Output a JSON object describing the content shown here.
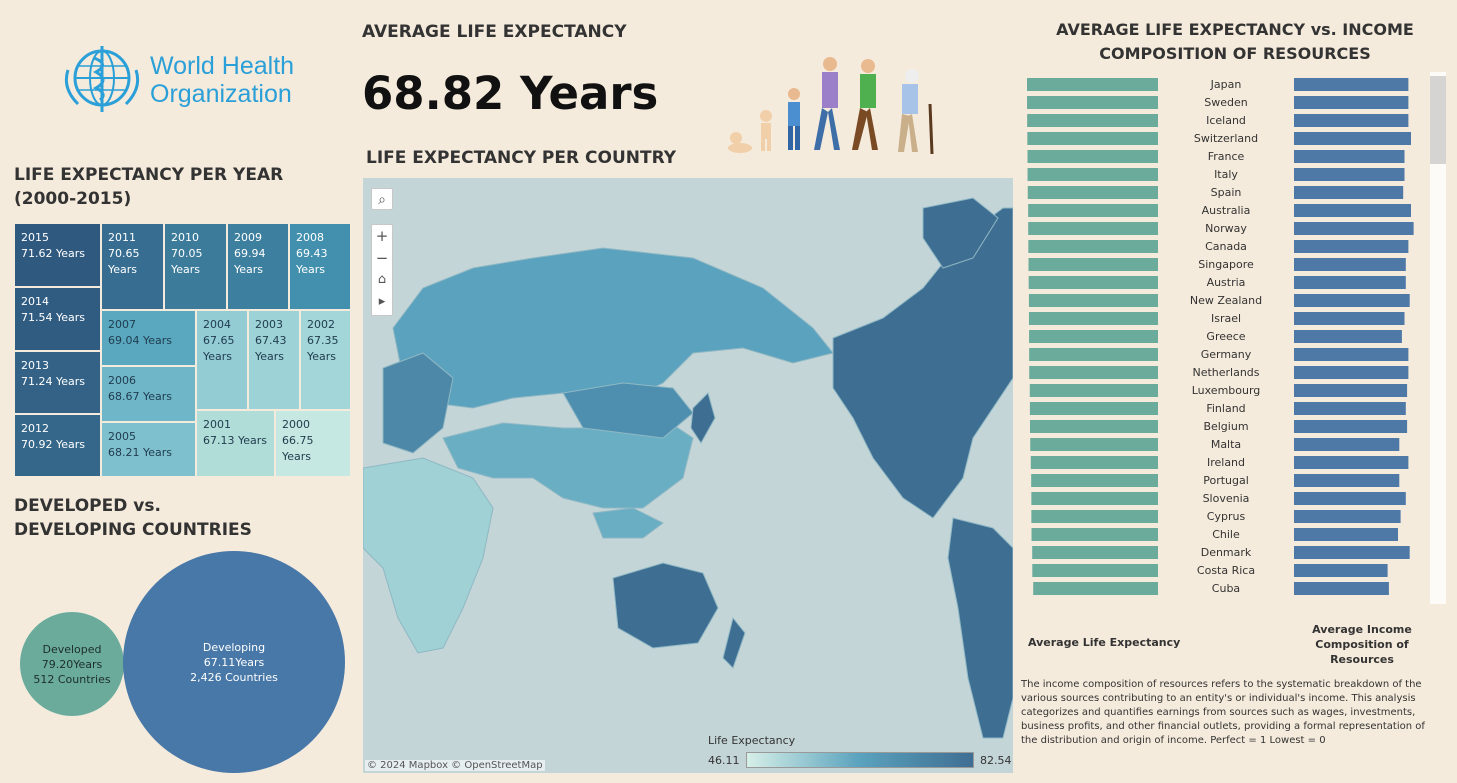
{
  "logo": {
    "line1": "World Health",
    "line2": "Organization"
  },
  "kpi": {
    "title": "AVERAGE LIFE EXPECTANCY",
    "value": "68.82 Years"
  },
  "treemap": {
    "title": "LIFE EXPECTANCY PER YEAR (2000-2015)",
    "items": [
      {
        "year": "2015",
        "label": "71.62 Years",
        "value": 71.62
      },
      {
        "year": "2014",
        "label": "71.54 Years",
        "value": 71.54
      },
      {
        "year": "2013",
        "label": "71.24 Years",
        "value": 71.24
      },
      {
        "year": "2012",
        "label": "70.92 Years",
        "value": 70.92
      },
      {
        "year": "2011",
        "label": "70.65 Years",
        "value": 70.65
      },
      {
        "year": "2010",
        "label": "70.05 Years",
        "value": 70.05
      },
      {
        "year": "2009",
        "label": "69.94 Years",
        "value": 69.94
      },
      {
        "year": "2008",
        "label": "69.43 Years",
        "value": 69.43
      },
      {
        "year": "2007",
        "label": "69.04 Years",
        "value": 69.04
      },
      {
        "year": "2006",
        "label": "68.67 Years",
        "value": 68.67
      },
      {
        "year": "2005",
        "label": "68.21 Years",
        "value": 68.21
      },
      {
        "year": "2004",
        "label": "67.65 Years",
        "value": 67.65
      },
      {
        "year": "2003",
        "label": "67.43 Years",
        "value": 67.43
      },
      {
        "year": "2002",
        "label": "67.35 Years",
        "value": 67.35
      },
      {
        "year": "2001",
        "label": "67.13 Years",
        "value": 67.13
      },
      {
        "year": "2000",
        "label": "66.75 Years",
        "value": 66.75
      }
    ]
  },
  "bubbles": {
    "title": "DEVELOPED vs. DEVELOPING COUNTRIES",
    "developed": {
      "name": "Developed",
      "years": "79.20Years",
      "countries": "512 Countries",
      "count": 512
    },
    "developing": {
      "name": "Developing",
      "years": "67.11Years",
      "countries": "2,426 Countries",
      "count": 2426
    }
  },
  "map": {
    "title": "LIFE EXPECTANCY PER COUNTRY",
    "attribution": "© 2024 Mapbox  © OpenStreetMap",
    "legend_title": "Life Expectancy",
    "legend_min": "46.11",
    "legend_max": "82.54",
    "controls": {
      "search": "⌕",
      "zoom_in": "+",
      "zoom_out": "−",
      "home": "⌂",
      "play": "▸"
    }
  },
  "chart_data": {
    "type": "bar",
    "title": "AVERAGE LIFE EXPECTANCY vs. INCOME COMPOSITION OF RESOURCES",
    "xlabel_left": "Average Life Expectancy",
    "xlabel_right": "Average Income Composition of Resources",
    "categories": [
      "Japan",
      "Sweden",
      "Iceland",
      "Switzerland",
      "France",
      "Italy",
      "Spain",
      "Australia",
      "Norway",
      "Canada",
      "Singapore",
      "Austria",
      "New Zealand",
      "Israel",
      "Greece",
      "Germany",
      "Netherlands",
      "Luxembourg",
      "Finland",
      "Belgium",
      "Malta",
      "Ireland",
      "Portugal",
      "Slovenia",
      "Cyprus",
      "Chile",
      "Denmark",
      "Costa Rica",
      "Cuba"
    ],
    "series": [
      {
        "name": "Average Life Expectancy",
        "values": [
          82.54,
          82.52,
          82.44,
          82.33,
          82.22,
          82.19,
          82.07,
          81.81,
          81.79,
          81.69,
          81.59,
          81.48,
          81.33,
          81.3,
          81.22,
          81.18,
          81.13,
          80.78,
          80.71,
          80.66,
          80.49,
          80.16,
          79.91,
          79.79,
          79.79,
          79.69,
          79.26,
          79.2,
          78.63
        ]
      },
      {
        "name": "Average Income Composition of Resources",
        "values": [
          0.88,
          0.88,
          0.88,
          0.9,
          0.85,
          0.85,
          0.84,
          0.9,
          0.92,
          0.88,
          0.86,
          0.86,
          0.89,
          0.85,
          0.83,
          0.88,
          0.88,
          0.87,
          0.86,
          0.87,
          0.81,
          0.88,
          0.81,
          0.86,
          0.82,
          0.8,
          0.89,
          0.72,
          0.73
        ]
      }
    ],
    "colors": {
      "life": "#6aab9c",
      "income": "#4e79a7"
    }
  },
  "note": "The income composition of resources refers to the systematic breakdown of the various sources contributing to an entity's or individual's income. This analysis categorizes and quantifies earnings from sources such as wages, investments, business profits, and other financial outlets, providing a formal representation of the distribution and origin of income. Perfect = 1 Lowest = 0"
}
